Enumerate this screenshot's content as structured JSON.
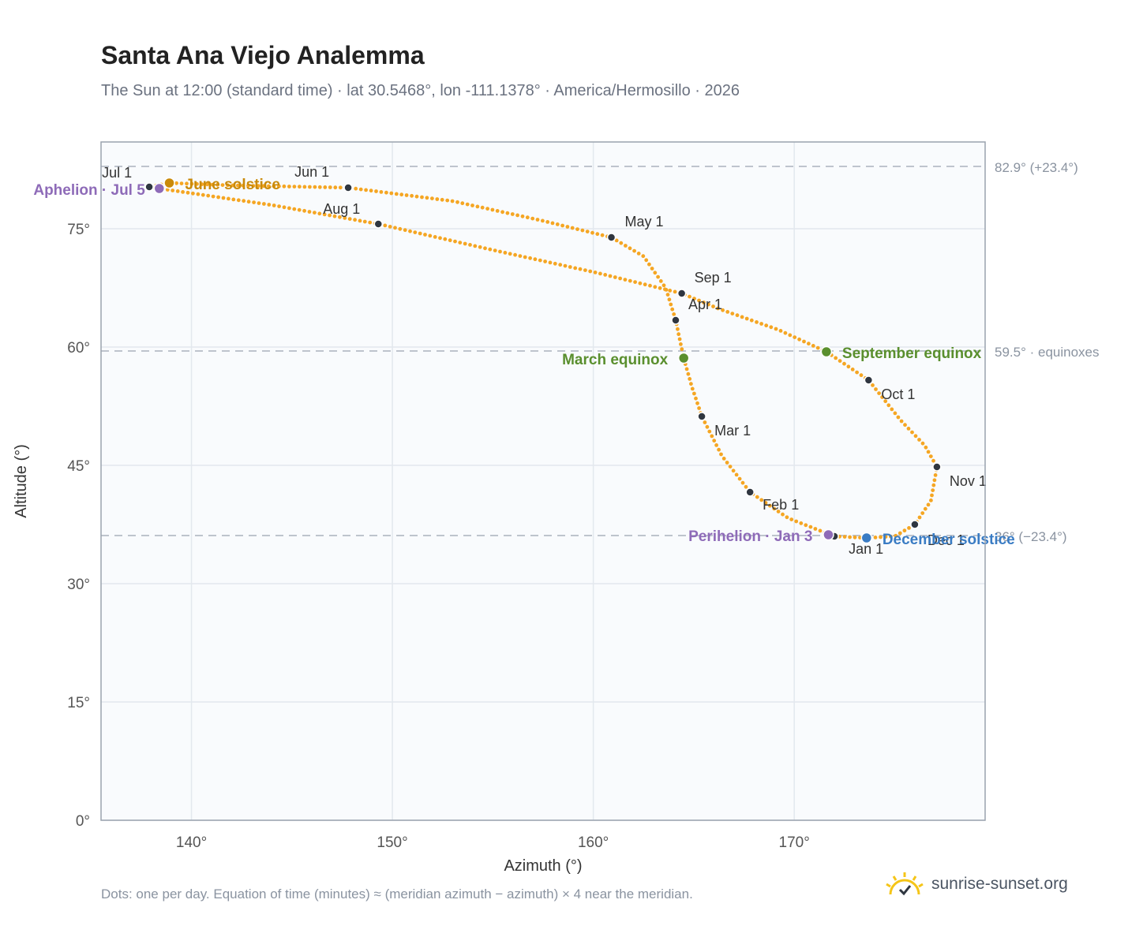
{
  "title": "Santa Ana Viejo Analemma",
  "subtitle": "The Sun at 12:00 (standard time) · lat 30.5468°, lon -111.1378° · America/Hermosillo · 2026",
  "footnote": "Dots: one per day. Equation of time (minutes) ≈ (meridian azimuth − azimuth) × 4 near the meridian.",
  "brand": "sunrise-sunset.org",
  "colors": {
    "curve": "#f5a623",
    "month_dot": "#2f3640",
    "solstice_june": "#c98a0a",
    "equinox": "#5a8f2e",
    "december": "#3a7cc4",
    "apsis": "#8e6bb8",
    "ref_line": "#b6bcc6",
    "plot_bg": "#f9fbfd"
  },
  "chart_data": {
    "type": "scatter",
    "xlabel": "Azimuth (°)",
    "ylabel": "Altitude (°)",
    "xlim": [
      135.5,
      179.5
    ],
    "ylim": [
      0,
      86
    ],
    "xticks": [
      140,
      150,
      160,
      170
    ],
    "xtick_labels": [
      "140°",
      "150°",
      "160°",
      "170°"
    ],
    "yticks": [
      0,
      15,
      30,
      45,
      60,
      75
    ],
    "ytick_labels": [
      "0°",
      "15°",
      "30°",
      "45°",
      "60°",
      "75°"
    ],
    "grid": true,
    "ref_lines": [
      {
        "y": 82.9,
        "label": "82.9° (+23.4°)"
      },
      {
        "y": 59.5,
        "label": "59.5° · equinoxes"
      },
      {
        "y": 36.1,
        "label": "36° (−23.4°)"
      }
    ],
    "analemma_path": [
      [
        172.0,
        36.0
      ],
      [
        173.6,
        35.8
      ],
      [
        175.0,
        36.0
      ],
      [
        176.0,
        37.5
      ],
      [
        176.8,
        40.5
      ],
      [
        177.1,
        44.8
      ],
      [
        176.5,
        47.5
      ],
      [
        175.3,
        50.7
      ],
      [
        173.7,
        55.8
      ],
      [
        171.6,
        59.4
      ],
      [
        169.2,
        62.2
      ],
      [
        166.3,
        64.8
      ],
      [
        164.4,
        66.8
      ],
      [
        160.2,
        69.4
      ],
      [
        155.0,
        72.3
      ],
      [
        149.3,
        75.6
      ],
      [
        144.0,
        78.0
      ],
      [
        140.0,
        79.5
      ],
      [
        138.4,
        80.1
      ],
      [
        137.9,
        80.3
      ],
      [
        138.9,
        80.8
      ],
      [
        142.0,
        80.5
      ],
      [
        147.8,
        80.2
      ],
      [
        153.0,
        78.5
      ],
      [
        157.5,
        76.0
      ],
      [
        160.9,
        73.9
      ],
      [
        162.5,
        71.5
      ],
      [
        163.6,
        67.5
      ],
      [
        164.1,
        63.4
      ],
      [
        164.5,
        58.6
      ],
      [
        164.9,
        55.0
      ],
      [
        165.4,
        51.2
      ],
      [
        166.4,
        46.2
      ],
      [
        167.8,
        41.6
      ],
      [
        169.7,
        38.3
      ],
      [
        172.0,
        36.0
      ]
    ],
    "month_points": [
      {
        "label": "Jan 1",
        "x": 172.0,
        "y": 36.0
      },
      {
        "label": "Feb 1",
        "x": 167.8,
        "y": 41.6
      },
      {
        "label": "Mar 1",
        "x": 165.4,
        "y": 51.2
      },
      {
        "label": "Apr 1",
        "x": 164.1,
        "y": 63.4
      },
      {
        "label": "May 1",
        "x": 160.9,
        "y": 73.9
      },
      {
        "label": "Jun 1",
        "x": 147.8,
        "y": 80.2
      },
      {
        "label": "Jul 1",
        "x": 137.9,
        "y": 80.3
      },
      {
        "label": "Aug 1",
        "x": 149.3,
        "y": 75.6
      },
      {
        "label": "Sep 1",
        "x": 164.4,
        "y": 66.8
      },
      {
        "label": "Oct 1",
        "x": 173.7,
        "y": 55.8
      },
      {
        "label": "Nov 1",
        "x": 177.1,
        "y": 44.8
      },
      {
        "label": "Dec 1",
        "x": 176.0,
        "y": 37.5
      }
    ],
    "events": [
      {
        "label": "June solstice",
        "x": 138.9,
        "y": 80.8,
        "color": "#c98a0a"
      },
      {
        "label": "Aphelion · Jul 5",
        "x": 138.4,
        "y": 80.1,
        "color": "#8e6bb8"
      },
      {
        "label": "March equinox",
        "x": 164.5,
        "y": 58.6,
        "color": "#5a8f2e"
      },
      {
        "label": "September equinox",
        "x": 171.6,
        "y": 59.4,
        "color": "#5a8f2e"
      },
      {
        "label": "Perihelion · Jan 3",
        "x": 171.7,
        "y": 36.2,
        "color": "#8e6bb8"
      },
      {
        "label": "December solstice",
        "x": 173.6,
        "y": 35.8,
        "color": "#3a7cc4"
      }
    ]
  }
}
